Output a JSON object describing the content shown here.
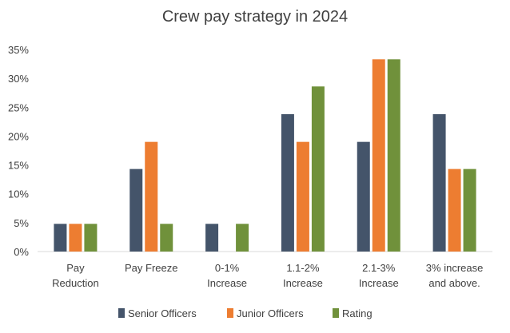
{
  "chart_data": {
    "type": "bar",
    "title": "Crew pay strategy in 2024",
    "xlabel": "",
    "ylabel": "",
    "ylim": [
      0,
      35
    ],
    "yticks": [
      "0%",
      "5%",
      "10%",
      "15%",
      "20%",
      "25%",
      "30%",
      "35%"
    ],
    "categories": [
      [
        "Pay",
        "Reduction"
      ],
      [
        "Pay Freeze"
      ],
      [
        "0-1%",
        "Increase"
      ],
      [
        "1.1-2%",
        "Increase"
      ],
      [
        "2.1-3%",
        "Increase"
      ],
      [
        "3% increase",
        "and above."
      ]
    ],
    "series": [
      {
        "name": "Senior Officers",
        "color": "#44546A",
        "values": [
          4.8,
          14.3,
          4.8,
          23.8,
          19.0,
          23.8
        ]
      },
      {
        "name": "Junior Officers",
        "color": "#ED7D31",
        "values": [
          4.8,
          19.0,
          0,
          19.0,
          33.3,
          14.3
        ]
      },
      {
        "name": "Rating",
        "color": "#70913B",
        "values": [
          4.8,
          4.8,
          4.8,
          28.6,
          33.3,
          14.3
        ]
      }
    ],
    "grid": false,
    "legend": "bottom"
  }
}
